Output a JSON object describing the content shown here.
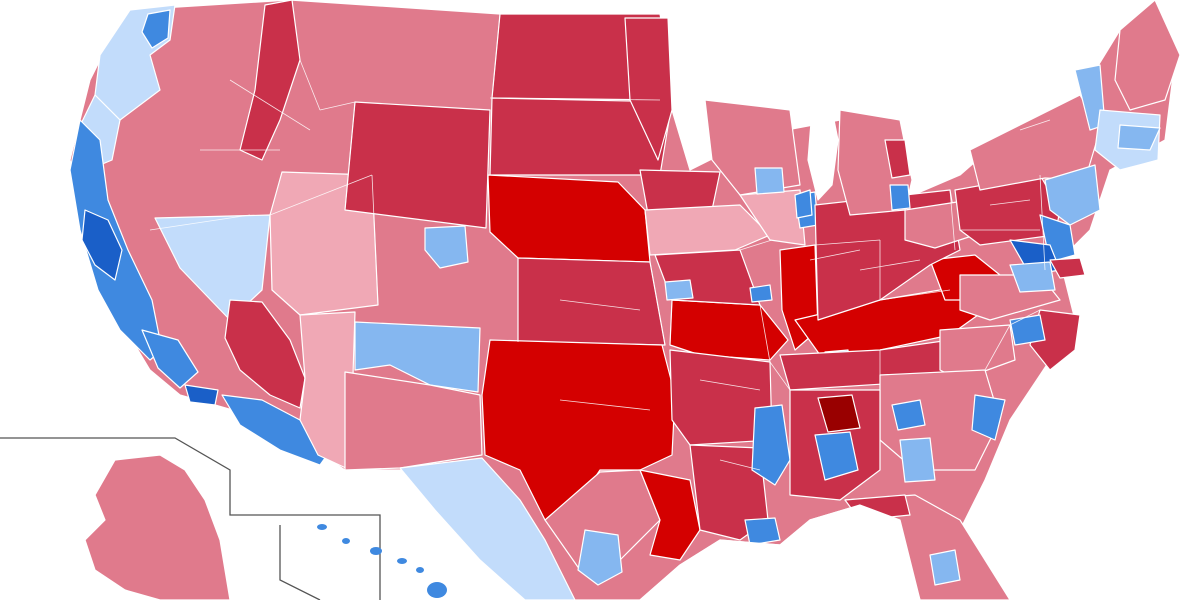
{
  "map": {
    "palette": {
      "rep_darkest": "#990000",
      "rep_strong": "#d40000",
      "rep_solid": "#c9304a",
      "rep_likely": "#e07a8c",
      "rep_lean": "#f0a8b5",
      "dem_lean": "#c2dcfb",
      "dem_likely": "#85b7f0",
      "dem_solid": "#3f89e0",
      "dem_strong": "#1a5fc8",
      "border": "#ffffff",
      "inset_border": "#555555",
      "background": "#ffffff"
    }
  }
}
